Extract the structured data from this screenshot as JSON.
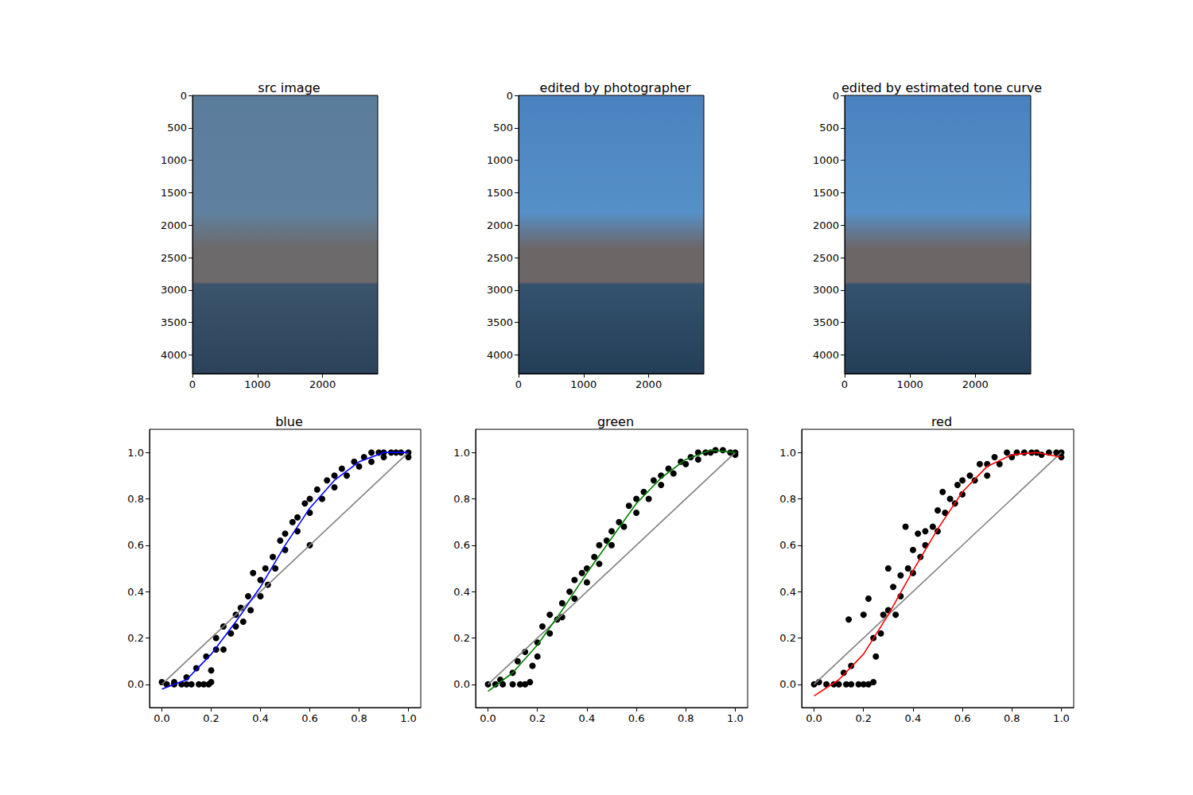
{
  "chart_data": [
    {
      "type": "image",
      "title": "src image",
      "xlim": [
        0,
        2848
      ],
      "ylim": [
        4288,
        0
      ],
      "xticks": [
        0,
        1000,
        2000
      ],
      "yticks": [
        0,
        500,
        1000,
        1500,
        2000,
        2500,
        3000,
        3500,
        4000
      ],
      "grid": false
    },
    {
      "type": "image",
      "title": "edited by photographer",
      "xlim": [
        0,
        2848
      ],
      "ylim": [
        4288,
        0
      ],
      "xticks": [
        0,
        1000,
        2000
      ],
      "yticks": [
        0,
        500,
        1000,
        1500,
        2000,
        2500,
        3000,
        3500,
        4000
      ],
      "grid": false
    },
    {
      "type": "image",
      "title": "edited by estimated tone curve",
      "xlim": [
        0,
        2848
      ],
      "ylim": [
        4288,
        0
      ],
      "xticks": [
        0,
        1000,
        2000
      ],
      "yticks": [
        0,
        500,
        1000,
        1500,
        2000,
        2500,
        3000,
        3500,
        4000
      ],
      "grid": false
    },
    {
      "type": "scatter",
      "title": "blue",
      "xlim": [
        -0.05,
        1.05
      ],
      "ylim": [
        -0.1,
        1.1
      ],
      "xticks": [
        {
          "value": 0,
          "label": "0.0"
        },
        {
          "value": 0.2,
          "label": "0.2"
        },
        {
          "value": 0.4,
          "label": "0.4"
        },
        {
          "value": 0.6,
          "label": "0.6"
        },
        {
          "value": 0.8,
          "label": "0.8"
        },
        {
          "value": 1,
          "label": "1.0"
        }
      ],
      "yticks": [
        {
          "value": 0,
          "label": "0.0"
        },
        {
          "value": 0.2,
          "label": "0.2"
        },
        {
          "value": 0.4,
          "label": "0.4"
        },
        {
          "value": 0.6,
          "label": "0.6"
        },
        {
          "value": 0.8,
          "label": "0.8"
        },
        {
          "value": 1,
          "label": "1.0"
        }
      ],
      "grid": false,
      "series": [
        {
          "type": "scatter",
          "color": "#000000",
          "marker": "circle",
          "x": [
            0,
            0.02,
            0.05,
            0.08,
            0.1,
            0.12,
            0.15,
            0.17,
            0.19,
            0.2,
            0.05,
            0.1,
            0.14,
            0.18,
            0.2,
            0.22,
            0.22,
            0.25,
            0.25,
            0.28,
            0.3,
            0.3,
            0.32,
            0.33,
            0.35,
            0.36,
            0.37,
            0.4,
            0.4,
            0.42,
            0.43,
            0.45,
            0.46,
            0.48,
            0.5,
            0.5,
            0.53,
            0.55,
            0.55,
            0.58,
            0.6,
            0.6,
            0.6,
            0.63,
            0.65,
            0.67,
            0.7,
            0.7,
            0.73,
            0.75,
            0.78,
            0.8,
            0.82,
            0.85,
            0.85,
            0.88,
            0.9,
            0.9,
            0.93,
            0.95,
            0.97,
            1.0,
            1.0
          ],
          "values": [
            0.01,
            0,
            0,
            0,
            0,
            0,
            0,
            0,
            0,
            0.01,
            0.01,
            0.03,
            0.07,
            0.12,
            0.06,
            0.15,
            0.2,
            0.15,
            0.25,
            0.22,
            0.3,
            0.25,
            0.33,
            0.27,
            0.38,
            0.32,
            0.48,
            0.45,
            0.38,
            0.5,
            0.43,
            0.55,
            0.5,
            0.62,
            0.65,
            0.58,
            0.7,
            0.72,
            0.66,
            0.78,
            0.6,
            0.8,
            0.74,
            0.84,
            0.8,
            0.88,
            0.9,
            0.85,
            0.93,
            0.9,
            0.96,
            0.94,
            0.98,
            1.0,
            0.96,
            1.0,
            1.0,
            0.98,
            1.0,
            1.0,
            1.0,
            1.0,
            0.98
          ]
        },
        {
          "type": "line",
          "color": "#808080",
          "line_style": "solid",
          "x": [
            0,
            1
          ],
          "values": [
            0,
            1
          ]
        },
        {
          "type": "line",
          "color": "#0000ff",
          "line_style": "solid",
          "x": [
            0,
            0.1,
            0.2,
            0.3,
            0.4,
            0.5,
            0.6,
            0.7,
            0.8,
            0.9,
            1.0
          ],
          "values": [
            -0.02,
            0.02,
            0.13,
            0.27,
            0.42,
            0.6,
            0.76,
            0.88,
            0.96,
            1.0,
            1.0
          ]
        }
      ]
    },
    {
      "type": "scatter",
      "title": "green",
      "xlim": [
        -0.05,
        1.05
      ],
      "ylim": [
        -0.1,
        1.1
      ],
      "xticks": [
        {
          "value": 0,
          "label": "0.0"
        },
        {
          "value": 0.2,
          "label": "0.2"
        },
        {
          "value": 0.4,
          "label": "0.4"
        },
        {
          "value": 0.6,
          "label": "0.6"
        },
        {
          "value": 0.8,
          "label": "0.8"
        },
        {
          "value": 1,
          "label": "1.0"
        }
      ],
      "yticks": [
        {
          "value": 0,
          "label": "0.0"
        },
        {
          "value": 0.2,
          "label": "0.2"
        },
        {
          "value": 0.4,
          "label": "0.4"
        },
        {
          "value": 0.6,
          "label": "0.6"
        },
        {
          "value": 0.8,
          "label": "0.8"
        },
        {
          "value": 1,
          "label": "1.0"
        }
      ],
      "grid": false,
      "series": [
        {
          "type": "scatter",
          "color": "#000000",
          "marker": "circle",
          "x": [
            0,
            0.03,
            0.06,
            0.1,
            0.13,
            0.15,
            0.17,
            0.05,
            0.1,
            0.12,
            0.15,
            0.18,
            0.2,
            0.2,
            0.22,
            0.25,
            0.25,
            0.28,
            0.3,
            0.3,
            0.33,
            0.35,
            0.35,
            0.38,
            0.4,
            0.4,
            0.43,
            0.45,
            0.45,
            0.48,
            0.5,
            0.5,
            0.53,
            0.55,
            0.57,
            0.6,
            0.6,
            0.63,
            0.65,
            0.67,
            0.7,
            0.7,
            0.73,
            0.75,
            0.78,
            0.8,
            0.82,
            0.85,
            0.85,
            0.88,
            0.9,
            0.92,
            0.95,
            0.98,
            1.0,
            1.0
          ],
          "values": [
            0,
            0,
            0,
            0,
            0,
            0,
            0.01,
            0.02,
            0.05,
            0.1,
            0.14,
            0.08,
            0.18,
            0.12,
            0.25,
            0.22,
            0.3,
            0.28,
            0.35,
            0.29,
            0.4,
            0.37,
            0.45,
            0.48,
            0.5,
            0.44,
            0.55,
            0.52,
            0.6,
            0.62,
            0.66,
            0.6,
            0.7,
            0.68,
            0.77,
            0.8,
            0.74,
            0.83,
            0.8,
            0.88,
            0.9,
            0.86,
            0.93,
            0.91,
            0.96,
            0.95,
            0.98,
            1.0,
            0.97,
            1.0,
            1.0,
            1.01,
            1.01,
            1.0,
            1.0,
            0.99
          ]
        },
        {
          "type": "line",
          "color": "#808080",
          "line_style": "solid",
          "x": [
            0,
            1
          ],
          "values": [
            0,
            1
          ]
        },
        {
          "type": "line",
          "color": "#008000",
          "line_style": "solid",
          "x": [
            0,
            0.1,
            0.2,
            0.3,
            0.4,
            0.5,
            0.6,
            0.7,
            0.8,
            0.9,
            1.0
          ],
          "values": [
            -0.03,
            0.05,
            0.17,
            0.32,
            0.48,
            0.63,
            0.78,
            0.89,
            0.97,
            1.01,
            1.0
          ]
        }
      ]
    },
    {
      "type": "scatter",
      "title": "red",
      "xlim": [
        -0.05,
        1.05
      ],
      "ylim": [
        -0.1,
        1.1
      ],
      "xticks": [
        {
          "value": 0,
          "label": "0.0"
        },
        {
          "value": 0.2,
          "label": "0.2"
        },
        {
          "value": 0.4,
          "label": "0.4"
        },
        {
          "value": 0.6,
          "label": "0.6"
        },
        {
          "value": 0.8,
          "label": "0.8"
        },
        {
          "value": 1,
          "label": "1.0"
        }
      ],
      "yticks": [
        {
          "value": 0,
          "label": "0.0"
        },
        {
          "value": 0.2,
          "label": "0.2"
        },
        {
          "value": 0.4,
          "label": "0.4"
        },
        {
          "value": 0.6,
          "label": "0.6"
        },
        {
          "value": 0.8,
          "label": "0.8"
        },
        {
          "value": 1,
          "label": "1.0"
        }
      ],
      "grid": false,
      "series": [
        {
          "type": "scatter",
          "color": "#000000",
          "marker": "circle",
          "x": [
            0,
            0.02,
            0.05,
            0.08,
            0.1,
            0.13,
            0.15,
            0.18,
            0.2,
            0.22,
            0.24,
            0.12,
            0.15,
            0.14,
            0.2,
            0.22,
            0.24,
            0.25,
            0.27,
            0.28,
            0.3,
            0.3,
            0.32,
            0.33,
            0.35,
            0.35,
            0.37,
            0.38,
            0.4,
            0.4,
            0.42,
            0.43,
            0.45,
            0.45,
            0.48,
            0.5,
            0.5,
            0.52,
            0.53,
            0.55,
            0.57,
            0.58,
            0.6,
            0.6,
            0.63,
            0.65,
            0.67,
            0.7,
            0.7,
            0.73,
            0.75,
            0.78,
            0.8,
            0.82,
            0.85,
            0.88,
            0.9,
            0.92,
            0.95,
            0.98,
            1.0,
            1.0
          ],
          "values": [
            0,
            0.01,
            0,
            0,
            0,
            0,
            0,
            0,
            0,
            0,
            0.01,
            0.05,
            0.08,
            0.28,
            0.3,
            0.37,
            0.2,
            0.12,
            0.22,
            0.3,
            0.5,
            0.32,
            0.42,
            0.3,
            0.47,
            0.38,
            0.68,
            0.5,
            0.58,
            0.48,
            0.65,
            0.55,
            0.66,
            0.6,
            0.68,
            0.75,
            0.66,
            0.83,
            0.74,
            0.8,
            0.78,
            0.86,
            0.88,
            0.82,
            0.9,
            0.88,
            0.95,
            0.95,
            0.9,
            0.98,
            0.95,
            1.0,
            0.98,
            1.0,
            1.0,
            1.0,
            1.0,
            0.99,
            1.0,
            1.0,
            1.0,
            0.98
          ]
        },
        {
          "type": "line",
          "color": "#808080",
          "line_style": "solid",
          "x": [
            0,
            1
          ],
          "values": [
            0,
            1
          ]
        },
        {
          "type": "line",
          "color": "#ff0000",
          "line_style": "solid",
          "x": [
            0,
            0.1,
            0.2,
            0.3,
            0.4,
            0.5,
            0.6,
            0.7,
            0.8,
            0.9,
            1.0
          ],
          "values": [
            -0.05,
            0.02,
            0.13,
            0.3,
            0.49,
            0.67,
            0.83,
            0.94,
            0.99,
            1.0,
            0.98
          ]
        }
      ]
    }
  ]
}
